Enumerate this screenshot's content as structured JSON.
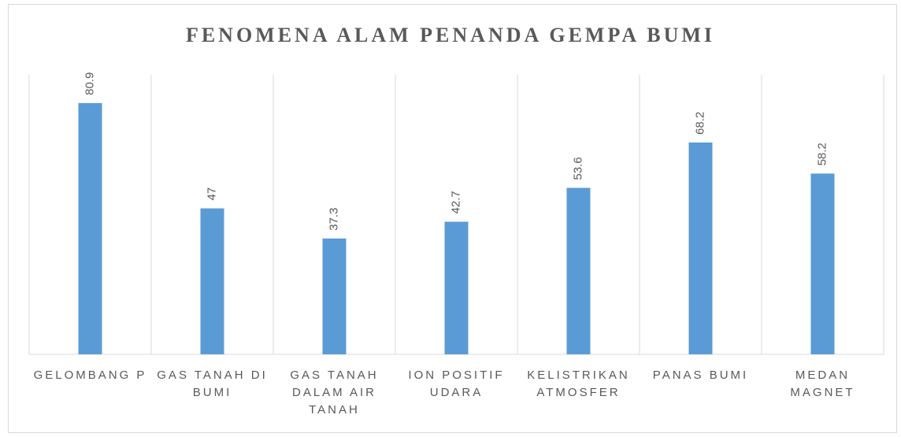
{
  "chart_data": {
    "type": "bar",
    "title": "FENOMENA ALAM PENANDA GEMPA BUMI",
    "categories": [
      "GELOMBANG P",
      "GAS TANAH DI BUMI",
      "GAS TANAH DALAM AIR TANAH",
      "ION POSITIF UDARA",
      "KELISTRIKAN ATMOSFER",
      "PANAS BUMI",
      "MEDAN MAGNET"
    ],
    "values": [
      80.9,
      47,
      37.3,
      42.7,
      53.6,
      68.2,
      58.2
    ],
    "color": "#5b9bd5",
    "ylim": [
      0,
      90
    ],
    "grid": true
  }
}
